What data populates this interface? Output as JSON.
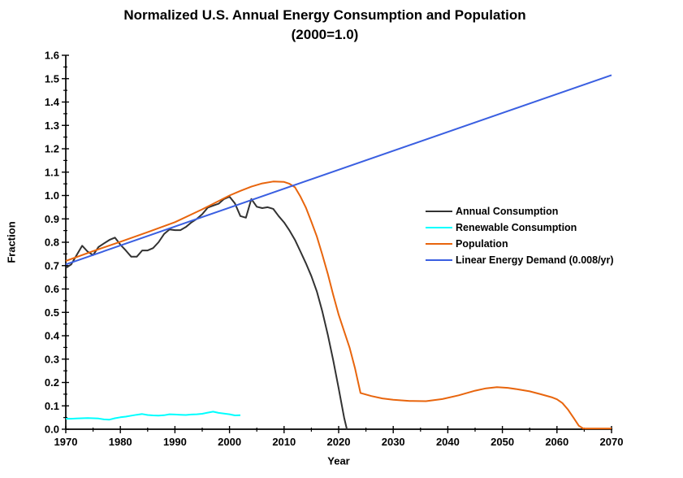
{
  "page": {
    "background": "#ffffff",
    "text_color": "#000000",
    "axis_color": "#000000"
  },
  "chart_data": {
    "type": "line",
    "title": "Normalized U.S. Annual Energy Consumption and Population",
    "subtitle": "(2000=1.0)",
    "xlabel": "Year",
    "ylabel": "Fraction",
    "xlim": [
      1970,
      2070
    ],
    "ylim": [
      0.0,
      1.6
    ],
    "x_tick_labels": [
      "1970",
      "1980",
      "1990",
      "2000",
      "2010",
      "2020",
      "2030",
      "2040",
      "2050",
      "2060",
      "2070"
    ],
    "y_tick_labels": [
      "0.0",
      "0.1",
      "0.2",
      "0.3",
      "0.4",
      "0.5",
      "0.6",
      "0.7",
      "0.8",
      "0.9",
      "1.0",
      "1.1",
      "1.2",
      "1.3",
      "1.4",
      "1.5",
      "1.6"
    ],
    "x_minor_step": 5,
    "y_minor_step": 0.05,
    "grid": false,
    "legend_position": "middle-right",
    "series": [
      {
        "name": "Annual Consumption",
        "color": "#323232",
        "points": [
          [
            1970,
            0.69
          ],
          [
            1971,
            0.705
          ],
          [
            1972,
            0.745
          ],
          [
            1973,
            0.785
          ],
          [
            1974,
            0.76
          ],
          [
            1975,
            0.745
          ],
          [
            1976,
            0.78
          ],
          [
            1977,
            0.795
          ],
          [
            1978,
            0.81
          ],
          [
            1979,
            0.82
          ],
          [
            1980,
            0.79
          ],
          [
            1981,
            0.765
          ],
          [
            1982,
            0.738
          ],
          [
            1983,
            0.738
          ],
          [
            1984,
            0.765
          ],
          [
            1985,
            0.765
          ],
          [
            1986,
            0.775
          ],
          [
            1987,
            0.8
          ],
          [
            1988,
            0.835
          ],
          [
            1989,
            0.855
          ],
          [
            1990,
            0.852
          ],
          [
            1991,
            0.852
          ],
          [
            1992,
            0.865
          ],
          [
            1993,
            0.885
          ],
          [
            1994,
            0.9
          ],
          [
            1995,
            0.92
          ],
          [
            1996,
            0.948
          ],
          [
            1997,
            0.957
          ],
          [
            1998,
            0.965
          ],
          [
            1999,
            0.985
          ],
          [
            2000,
            0.995
          ],
          [
            2001,
            0.966
          ],
          [
            2002,
            0.912
          ],
          [
            2003,
            0.905
          ],
          [
            2004,
            0.985
          ],
          [
            2005,
            0.952
          ],
          [
            2006,
            0.946
          ],
          [
            2007,
            0.95
          ],
          [
            2008,
            0.943
          ],
          [
            2009,
            0.912
          ],
          [
            2010,
            0.885
          ],
          [
            2011,
            0.85
          ],
          [
            2012,
            0.81
          ],
          [
            2013,
            0.76
          ],
          [
            2014,
            0.71
          ],
          [
            2015,
            0.655
          ],
          [
            2016,
            0.59
          ],
          [
            2017,
            0.505
          ],
          [
            2018,
            0.405
          ],
          [
            2019,
            0.295
          ],
          [
            2020,
            0.175
          ],
          [
            2021,
            0.05
          ],
          [
            2021.5,
            0.0
          ]
        ]
      },
      {
        "name": "Renewable Consumption",
        "color": "#00ffff",
        "points": [
          [
            1970,
            0.045
          ],
          [
            1971,
            0.045
          ],
          [
            1972,
            0.046
          ],
          [
            1973,
            0.047
          ],
          [
            1974,
            0.048
          ],
          [
            1975,
            0.047
          ],
          [
            1976,
            0.046
          ],
          [
            1977,
            0.042
          ],
          [
            1978,
            0.041
          ],
          [
            1979,
            0.047
          ],
          [
            1980,
            0.051
          ],
          [
            1981,
            0.054
          ],
          [
            1982,
            0.058
          ],
          [
            1983,
            0.062
          ],
          [
            1984,
            0.065
          ],
          [
            1985,
            0.061
          ],
          [
            1986,
            0.059
          ],
          [
            1987,
            0.058
          ],
          [
            1988,
            0.06
          ],
          [
            1989,
            0.064
          ],
          [
            1990,
            0.063
          ],
          [
            1991,
            0.062
          ],
          [
            1992,
            0.061
          ],
          [
            1993,
            0.063
          ],
          [
            1994,
            0.064
          ],
          [
            1995,
            0.066
          ],
          [
            1996,
            0.071
          ],
          [
            1997,
            0.075
          ],
          [
            1998,
            0.07
          ],
          [
            1999,
            0.067
          ],
          [
            2000,
            0.064
          ],
          [
            2001,
            0.059
          ],
          [
            2002,
            0.06
          ]
        ]
      },
      {
        "name": "Population",
        "color": "#e8650d",
        "points": [
          [
            1970,
            0.72
          ],
          [
            1975,
            0.762
          ],
          [
            1980,
            0.802
          ],
          [
            1985,
            0.843
          ],
          [
            1990,
            0.886
          ],
          [
            1995,
            0.941
          ],
          [
            2000,
            1.0
          ],
          [
            2002,
            1.02
          ],
          [
            2004,
            1.038
          ],
          [
            2006,
            1.052
          ],
          [
            2008,
            1.06
          ],
          [
            2010,
            1.058
          ],
          [
            2011,
            1.05
          ],
          [
            2012,
            1.035
          ],
          [
            2013,
            0.995
          ],
          [
            2014,
            0.948
          ],
          [
            2015,
            0.888
          ],
          [
            2016,
            0.825
          ],
          [
            2017,
            0.748
          ],
          [
            2018,
            0.665
          ],
          [
            2019,
            0.575
          ],
          [
            2020,
            0.49
          ],
          [
            2021,
            0.42
          ],
          [
            2022,
            0.35
          ],
          [
            2023,
            0.26
          ],
          [
            2024,
            0.155
          ],
          [
            2026,
            0.142
          ],
          [
            2028,
            0.132
          ],
          [
            2030,
            0.126
          ],
          [
            2033,
            0.121
          ],
          [
            2036,
            0.12
          ],
          [
            2039,
            0.129
          ],
          [
            2042,
            0.145
          ],
          [
            2045,
            0.165
          ],
          [
            2047,
            0.175
          ],
          [
            2049,
            0.18
          ],
          [
            2051,
            0.177
          ],
          [
            2053,
            0.17
          ],
          [
            2055,
            0.162
          ],
          [
            2057,
            0.15
          ],
          [
            2059,
            0.137
          ],
          [
            2060,
            0.128
          ],
          [
            2061,
            0.112
          ],
          [
            2062,
            0.085
          ],
          [
            2063,
            0.05
          ],
          [
            2064,
            0.015
          ],
          [
            2064.8,
            0.003
          ],
          [
            2070,
            0.003
          ]
        ]
      },
      {
        "name": "Linear Energy Demand (0.008/yr)",
        "color": "#3a5fe1",
        "points": [
          [
            1970,
            0.705
          ],
          [
            2070,
            1.515
          ]
        ]
      }
    ]
  }
}
